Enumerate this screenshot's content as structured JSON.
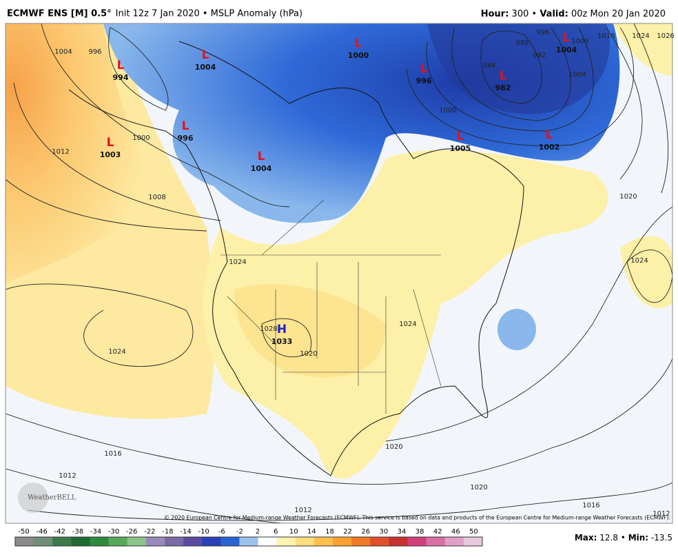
{
  "header": {
    "model": "ECMWF ENS [M] 0.5°",
    "info": "Init 12z 7 Jan 2020 • MSLP Anomaly (hPa)",
    "hour_label": "Hour:",
    "hour": "300",
    "separator": "•",
    "valid_label": "Valid:",
    "valid": "00z Mon 20 Jan 2020"
  },
  "centers": [
    {
      "symbol": "L",
      "value": 994
    },
    {
      "symbol": "L",
      "value": 1004
    },
    {
      "symbol": "L",
      "value": 1000
    },
    {
      "symbol": "L",
      "value": 996
    },
    {
      "symbol": "L",
      "value": 982
    },
    {
      "symbol": "L",
      "value": 1004
    },
    {
      "symbol": "L",
      "value": 996
    },
    {
      "symbol": "L",
      "value": 1003
    },
    {
      "symbol": "L",
      "value": 1004
    },
    {
      "symbol": "L",
      "value": 1005
    },
    {
      "symbol": "L",
      "value": 1002
    },
    {
      "symbol": "H",
      "value": 1033
    }
  ],
  "symbol_colors": {
    "L": "#e8101a",
    "H": "#2020d0"
  },
  "contour_labels": [
    1004,
    996,
    1000,
    1008,
    1012,
    1024,
    1024,
    1028,
    1020,
    1024,
    1020,
    1016,
    1012,
    984,
    988,
    992,
    996,
    1000,
    1004,
    1008,
    1016,
    1024,
    1026,
    1020,
    1024,
    1020,
    1016,
    1012,
    1012
  ],
  "copyright": "© 2020 European Centre for Medium-range Weather Forecasts (ECMWF). This service is based on data and products of the European Centre for Medium-range Weather Forecasts (ECMWF).",
  "logo": "WeatherBELL",
  "colorbar": {
    "ticks": [
      -50,
      -46,
      -42,
      -38,
      -34,
      -30,
      -26,
      -22,
      -18,
      -14,
      -10,
      -6,
      -2,
      2,
      6,
      10,
      14,
      18,
      22,
      26,
      30,
      34,
      38,
      42,
      46,
      50
    ],
    "colors": [
      "#8a8a8a",
      "#6f8f78",
      "#3c7a4a",
      "#1f6a32",
      "#2e8a3e",
      "#58a85a",
      "#8cc48a",
      "#9a8ab8",
      "#7a6aa8",
      "#5a4aa0",
      "#2b3fb8",
      "#2a64d2",
      "#9cc2ee",
      "#ffffff",
      "#fff3b0",
      "#ffdf80",
      "#ffc050",
      "#ffa030",
      "#f07a28",
      "#e0502a",
      "#c8322e",
      "#d0407a",
      "#d870a8",
      "#e0a0c8",
      "#e8c8dc"
    ]
  },
  "stats": [
    {
      "label": "Max:",
      "value": 12.8
    },
    {
      "label": "Min:",
      "value": -13.5
    }
  ]
}
